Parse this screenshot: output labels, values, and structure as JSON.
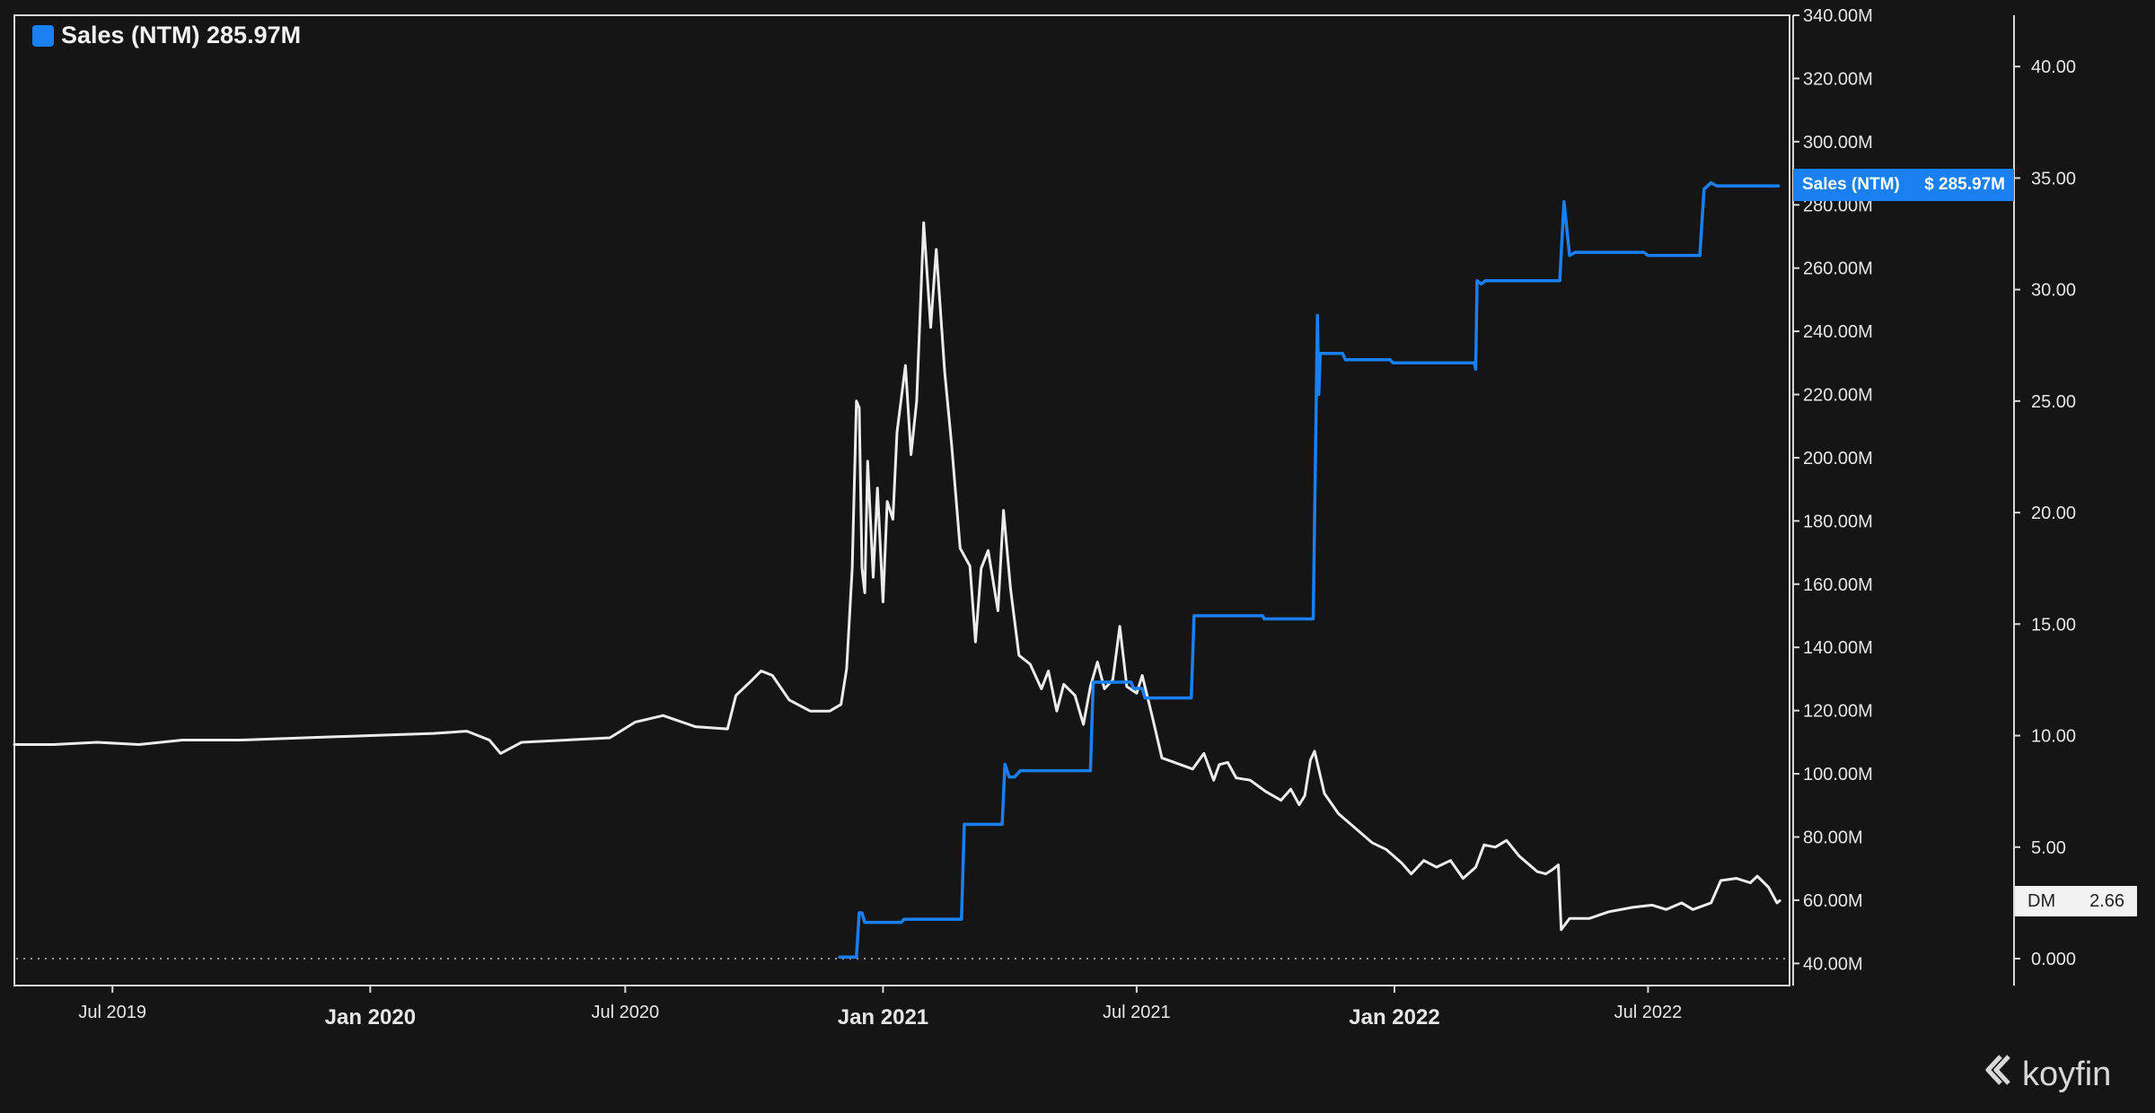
{
  "legend": {
    "label": "Sales (NTM) 285.97M",
    "color": "#1a80f2"
  },
  "value_tag": {
    "name": "Sales (NTM)",
    "value": "$ 285.97M"
  },
  "dm_box": {
    "label": "DM",
    "value": "2.66"
  },
  "brand": {
    "name": "koyfin",
    "logo_icon": "koyfin-logo-icon"
  },
  "colors": {
    "background": "#151515",
    "sales_line": "#1a80f2",
    "price_line": "#ececec",
    "frame": "#d8d8d8"
  },
  "chart_data": {
    "type": "line",
    "x_range": [
      "2019-04-22",
      "2022-10-10"
    ],
    "y_left": {
      "range": [
        33,
        340
      ],
      "ticks": [
        "340.00M",
        "320.00M",
        "300.00M",
        "280.00M",
        "260.00M",
        "240.00M",
        "220.00M",
        "200.00M",
        "180.00M",
        "160.00M",
        "140.00M",
        "120.00M",
        "100.00M",
        "80.00M",
        "60.00M",
        "40.00M"
      ]
    },
    "y_right": {
      "range": [
        0,
        42.3
      ],
      "ticks": [
        "40.00",
        "35.00",
        "30.00",
        "25.00",
        "20.00",
        "15.00",
        "10.00",
        "5.00",
        "0.000"
      ]
    },
    "x_ticks": [
      {
        "label": "Jul 2019",
        "date": "2019-07-01",
        "major": false
      },
      {
        "label": "Jan 2020",
        "date": "2020-01-01",
        "major": true
      },
      {
        "label": "Jul 2020",
        "date": "2020-07-01",
        "major": false
      },
      {
        "label": "Jan 2021",
        "date": "2021-01-01",
        "major": true
      },
      {
        "label": "Jul 2021",
        "date": "2021-07-01",
        "major": false
      },
      {
        "label": "Jan 2022",
        "date": "2022-01-01",
        "major": true
      },
      {
        "label": "Jul 2022",
        "date": "2022-07-01",
        "major": false
      }
    ],
    "grid": false,
    "series": [
      {
        "name": "Sales (NTM)",
        "axis": "left",
        "color": "#1a80f2",
        "points": [
          [
            "2020-12-01",
            42
          ],
          [
            "2020-12-13",
            42
          ],
          [
            "2020-12-15",
            56
          ],
          [
            "2020-12-17",
            56
          ],
          [
            "2020-12-19",
            53
          ],
          [
            "2021-01-14",
            53
          ],
          [
            "2021-01-16",
            54
          ],
          [
            "2021-02-26",
            54
          ],
          [
            "2021-02-28",
            84
          ],
          [
            "2021-03-27",
            84
          ],
          [
            "2021-03-29",
            103
          ],
          [
            "2021-04-01",
            99
          ],
          [
            "2021-04-05",
            99
          ],
          [
            "2021-04-09",
            101
          ],
          [
            "2021-05-14",
            101
          ],
          [
            "2021-05-29",
            101
          ],
          [
            "2021-05-31",
            129
          ],
          [
            "2021-06-27",
            129
          ],
          [
            "2021-06-29",
            127
          ],
          [
            "2021-07-05",
            127
          ],
          [
            "2021-07-07",
            124
          ],
          [
            "2021-08-09",
            124
          ],
          [
            "2021-08-11",
            150
          ],
          [
            "2021-09-29",
            150
          ],
          [
            "2021-09-30",
            149
          ],
          [
            "2021-11-04",
            149
          ],
          [
            "2021-11-07",
            245
          ],
          [
            "2021-11-08",
            220
          ],
          [
            "2021-11-09",
            233
          ],
          [
            "2021-11-25",
            233
          ],
          [
            "2021-11-27",
            231
          ],
          [
            "2021-12-29",
            231
          ],
          [
            "2021-12-31",
            230
          ],
          [
            "2022-02-27",
            230
          ],
          [
            "2022-02-28",
            228
          ],
          [
            "2022-03-01",
            256
          ],
          [
            "2022-03-04",
            255
          ],
          [
            "2022-03-07",
            256
          ],
          [
            "2022-04-29",
            256
          ],
          [
            "2022-05-02",
            281
          ],
          [
            "2022-05-06",
            264
          ],
          [
            "2022-05-10",
            265
          ],
          [
            "2022-06-28",
            265
          ],
          [
            "2022-07-01",
            264
          ],
          [
            "2022-08-07",
            264
          ],
          [
            "2022-08-10",
            285
          ],
          [
            "2022-08-15",
            287
          ],
          [
            "2022-08-19",
            286
          ],
          [
            "2022-10-02",
            286
          ]
        ]
      },
      {
        "name": "",
        "axis": "right",
        "color": "#ececec",
        "points": [
          [
            "2019-04-22",
            9.6
          ],
          [
            "2019-05-20",
            9.6
          ],
          [
            "2019-06-20",
            9.7
          ],
          [
            "2019-07-20",
            9.6
          ],
          [
            "2019-08-20",
            9.8
          ],
          [
            "2019-10-01",
            9.8
          ],
          [
            "2019-11-15",
            9.9
          ],
          [
            "2020-01-01",
            10.0
          ],
          [
            "2020-02-15",
            10.1
          ],
          [
            "2020-03-10",
            10.2
          ],
          [
            "2020-03-26",
            9.8
          ],
          [
            "2020-04-03",
            9.2
          ],
          [
            "2020-04-18",
            9.7
          ],
          [
            "2020-05-20",
            9.8
          ],
          [
            "2020-06-20",
            9.9
          ],
          [
            "2020-07-08",
            10.6
          ],
          [
            "2020-07-28",
            10.9
          ],
          [
            "2020-08-20",
            10.4
          ],
          [
            "2020-09-12",
            10.3
          ],
          [
            "2020-09-18",
            11.8
          ],
          [
            "2020-09-28",
            12.4
          ],
          [
            "2020-10-06",
            12.9
          ],
          [
            "2020-10-14",
            12.7
          ],
          [
            "2020-10-26",
            11.6
          ],
          [
            "2020-11-10",
            11.1
          ],
          [
            "2020-11-24",
            11.1
          ],
          [
            "2020-12-02",
            11.4
          ],
          [
            "2020-12-06",
            13.0
          ],
          [
            "2020-12-10",
            17.5
          ],
          [
            "2020-12-13",
            25.0
          ],
          [
            "2020-12-15",
            24.7
          ],
          [
            "2020-12-17",
            17.5
          ],
          [
            "2020-12-19",
            16.4
          ],
          [
            "2020-12-21",
            22.3
          ],
          [
            "2020-12-25",
            17.1
          ],
          [
            "2020-12-28",
            21.1
          ],
          [
            "2021-01-01",
            16.0
          ],
          [
            "2021-01-04",
            20.5
          ],
          [
            "2021-01-08",
            19.7
          ],
          [
            "2021-01-11",
            23.6
          ],
          [
            "2021-01-17",
            26.6
          ],
          [
            "2021-01-21",
            22.6
          ],
          [
            "2021-01-25",
            25.0
          ],
          [
            "2021-01-30",
            33.0
          ],
          [
            "2021-02-04",
            28.3
          ],
          [
            "2021-02-08",
            31.8
          ],
          [
            "2021-02-14",
            26.3
          ],
          [
            "2021-02-19",
            23.0
          ],
          [
            "2021-02-25",
            18.4
          ],
          [
            "2021-03-04",
            17.6
          ],
          [
            "2021-03-08",
            14.2
          ],
          [
            "2021-03-12",
            17.5
          ],
          [
            "2021-03-17",
            18.3
          ],
          [
            "2021-03-24",
            15.6
          ],
          [
            "2021-03-28",
            20.1
          ],
          [
            "2021-04-02",
            16.6
          ],
          [
            "2021-04-08",
            13.6
          ],
          [
            "2021-04-16",
            13.2
          ],
          [
            "2021-04-24",
            12.1
          ],
          [
            "2021-04-29",
            12.9
          ],
          [
            "2021-05-05",
            11.1
          ],
          [
            "2021-05-10",
            12.3
          ],
          [
            "2021-05-18",
            11.8
          ],
          [
            "2021-05-24",
            10.5
          ],
          [
            "2021-05-29",
            12.2
          ],
          [
            "2021-06-03",
            13.3
          ],
          [
            "2021-06-08",
            12.1
          ],
          [
            "2021-06-14",
            12.5
          ],
          [
            "2021-06-19",
            14.9
          ],
          [
            "2021-06-24",
            12.2
          ],
          [
            "2021-07-01",
            11.9
          ],
          [
            "2021-07-05",
            12.7
          ],
          [
            "2021-07-12",
            10.9
          ],
          [
            "2021-07-19",
            9.0
          ],
          [
            "2021-07-28",
            8.8
          ],
          [
            "2021-08-10",
            8.5
          ],
          [
            "2021-08-18",
            9.2
          ],
          [
            "2021-08-25",
            8.0
          ],
          [
            "2021-08-29",
            8.7
          ],
          [
            "2021-09-04",
            8.8
          ],
          [
            "2021-09-10",
            8.1
          ],
          [
            "2021-09-20",
            8.0
          ],
          [
            "2021-10-01",
            7.5
          ],
          [
            "2021-10-12",
            7.1
          ],
          [
            "2021-10-19",
            7.6
          ],
          [
            "2021-10-25",
            6.9
          ],
          [
            "2021-10-29",
            7.3
          ],
          [
            "2021-11-02",
            8.9
          ],
          [
            "2021-11-05",
            9.3
          ],
          [
            "2021-11-12",
            7.4
          ],
          [
            "2021-11-22",
            6.5
          ],
          [
            "2021-12-05",
            5.8
          ],
          [
            "2021-12-16",
            5.2
          ],
          [
            "2021-12-26",
            4.9
          ],
          [
            "2022-01-06",
            4.3
          ],
          [
            "2022-01-13",
            3.8
          ],
          [
            "2022-01-22",
            4.4
          ],
          [
            "2022-01-31",
            4.1
          ],
          [
            "2022-02-10",
            4.4
          ],
          [
            "2022-02-19",
            3.6
          ],
          [
            "2022-02-28",
            4.1
          ],
          [
            "2022-03-06",
            5.1
          ],
          [
            "2022-03-14",
            5.0
          ],
          [
            "2022-03-22",
            5.3
          ],
          [
            "2022-03-31",
            4.6
          ],
          [
            "2022-04-13",
            3.9
          ],
          [
            "2022-04-19",
            3.8
          ],
          [
            "2022-04-24",
            4.0
          ],
          [
            "2022-04-28",
            4.2
          ],
          [
            "2022-04-30",
            1.3
          ],
          [
            "2022-05-06",
            1.8
          ],
          [
            "2022-05-20",
            1.8
          ],
          [
            "2022-06-03",
            2.1
          ],
          [
            "2022-06-20",
            2.3
          ],
          [
            "2022-07-04",
            2.4
          ],
          [
            "2022-07-14",
            2.2
          ],
          [
            "2022-07-25",
            2.5
          ],
          [
            "2022-08-02",
            2.2
          ],
          [
            "2022-08-15",
            2.5
          ],
          [
            "2022-08-22",
            3.5
          ],
          [
            "2022-09-02",
            3.6
          ],
          [
            "2022-09-12",
            3.4
          ],
          [
            "2022-09-17",
            3.7
          ],
          [
            "2022-09-25",
            3.2
          ],
          [
            "2022-10-01",
            2.5
          ],
          [
            "2022-10-03",
            2.6
          ]
        ]
      }
    ]
  }
}
